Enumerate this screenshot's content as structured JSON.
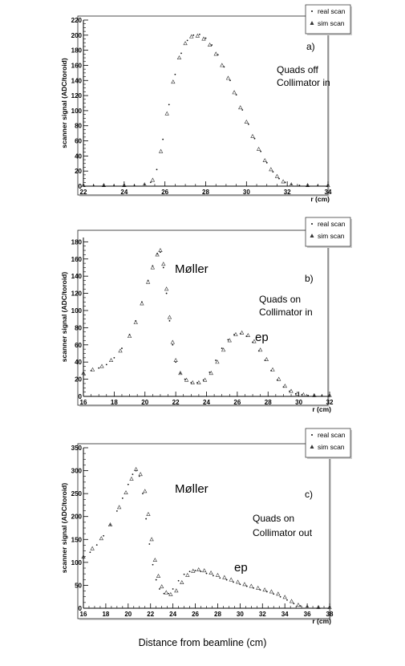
{
  "chart_data": [
    {
      "type": "scatter",
      "panel_label": "a)",
      "notes": [
        "Quads off",
        "Collimator in"
      ],
      "peak_labels": [],
      "ylabel": "scanner signal (ADC/toroid)",
      "xunit": "r (cm)",
      "xlim": [
        22,
        34
      ],
      "ylim": [
        0,
        220
      ],
      "xticks": [
        22,
        24,
        26,
        28,
        30,
        32,
        34
      ],
      "yticks": [
        0,
        20,
        40,
        60,
        80,
        100,
        120,
        140,
        160,
        180,
        200,
        220
      ],
      "legend": {
        "position": "top-right",
        "entries": [
          "real scan",
          "sim scan"
        ]
      },
      "series": [
        {
          "name": "real scan",
          "marker": "dot",
          "x": [
            22,
            22.5,
            23,
            23.5,
            24,
            24.5,
            25,
            25.3,
            25.6,
            25.9,
            26.2,
            26.5,
            26.8,
            27.1,
            27.4,
            27.7,
            28.0,
            28.3,
            28.6,
            28.9,
            29.2,
            29.5,
            29.8,
            30.1,
            30.4,
            30.7,
            31.0,
            31.3,
            31.6,
            31.9,
            32.2,
            32.6,
            33,
            33.5,
            34
          ],
          "y": [
            1,
            1,
            1,
            1,
            1,
            1,
            2,
            5,
            22,
            62,
            108,
            148,
            176,
            193,
            200,
            201,
            196,
            187,
            174,
            158,
            140,
            121,
            101,
            82,
            63,
            46,
            31,
            19,
            10,
            5,
            2,
            1,
            1,
            1,
            1
          ]
        },
        {
          "name": "sim scan",
          "marker": "triangle",
          "x": [
            22,
            23,
            24,
            25,
            25.4,
            25.8,
            26.1,
            26.4,
            26.7,
            27.0,
            27.3,
            27.6,
            27.9,
            28.2,
            28.5,
            28.8,
            29.1,
            29.4,
            29.7,
            30.0,
            30.3,
            30.6,
            30.9,
            31.2,
            31.5,
            31.8,
            32.2,
            33,
            34
          ],
          "y": [
            1,
            1,
            1,
            2,
            8,
            46,
            96,
            138,
            170,
            189,
            198,
            199,
            195,
            187,
            175,
            160,
            143,
            124,
            104,
            85,
            66,
            49,
            34,
            22,
            13,
            6,
            2,
            1,
            1
          ]
        }
      ]
    },
    {
      "type": "scatter",
      "panel_label": "b)",
      "notes": [
        "Quads on",
        "Collimator in"
      ],
      "peak_labels": [
        "Møller",
        "ep"
      ],
      "ylabel": "scanner signal (ADC/toroid)",
      "xunit": "r (cm)",
      "xlim": [
        16,
        32
      ],
      "ylim": [
        0,
        185
      ],
      "xticks": [
        16,
        18,
        20,
        22,
        24,
        26,
        28,
        30,
        32
      ],
      "yticks": [
        0,
        20,
        40,
        60,
        80,
        100,
        120,
        140,
        160,
        180
      ],
      "legend": {
        "position": "top-right",
        "entries": [
          "real scan",
          "sim scan"
        ]
      },
      "series": [
        {
          "name": "real scan",
          "marker": "dot",
          "x": [
            16,
            16.5,
            17,
            17.5,
            18,
            18.5,
            19,
            19.4,
            19.8,
            20.2,
            20.5,
            20.8,
            21.0,
            21.2,
            21.4,
            21.6,
            21.8,
            22.0,
            22.3,
            22.6,
            23.0,
            23.4,
            23.8,
            24.2,
            24.6,
            25.0,
            25.4,
            25.8,
            26.2,
            26.6,
            27.0,
            27.4,
            27.8,
            28.2,
            28.6,
            29.0,
            29.4,
            29.8,
            30.2,
            30.6,
            31,
            31.5,
            32
          ],
          "y": [
            27,
            30,
            33,
            37,
            45,
            56,
            72,
            88,
            110,
            135,
            152,
            166,
            168,
            150,
            120,
            88,
            60,
            40,
            27,
            20,
            16,
            16,
            19,
            28,
            42,
            56,
            66,
            72,
            73,
            70,
            63,
            53,
            42,
            30,
            19,
            11,
            6,
            3,
            2,
            1,
            1,
            1,
            1
          ]
        },
        {
          "name": "sim scan",
          "marker": "triangle",
          "x": [
            16,
            16.6,
            17.2,
            17.8,
            18.4,
            19.0,
            19.4,
            19.8,
            20.2,
            20.5,
            20.8,
            21.0,
            21.2,
            21.4,
            21.6,
            21.8,
            22.0,
            22.3,
            22.7,
            23.1,
            23.5,
            23.9,
            24.3,
            24.7,
            25.1,
            25.5,
            25.9,
            26.3,
            26.7,
            27.1,
            27.5,
            27.9,
            28.3,
            28.7,
            29.1,
            29.5,
            29.9,
            30.3,
            31,
            32
          ],
          "y": [
            27,
            31,
            35,
            42,
            53,
            70,
            86,
            108,
            133,
            150,
            165,
            170,
            154,
            125,
            92,
            63,
            42,
            27,
            19,
            16,
            16,
            19,
            27,
            40,
            54,
            65,
            72,
            74,
            71,
            64,
            54,
            43,
            31,
            20,
            12,
            6,
            3,
            2,
            1,
            1
          ]
        }
      ]
    },
    {
      "type": "scatter",
      "panel_label": "c)",
      "notes": [
        "Quads on",
        "Collimator out"
      ],
      "peak_labels": [
        "Møller",
        "ep"
      ],
      "ylabel": "scanner signal (ADC/toroid)",
      "xunit": "r (cm)",
      "xlim": [
        16,
        38
      ],
      "ylim": [
        0,
        350
      ],
      "xticks": [
        16,
        18,
        20,
        22,
        24,
        26,
        28,
        30,
        32,
        34,
        36,
        38
      ],
      "yticks": [
        0,
        50,
        100,
        150,
        200,
        250,
        300,
        350
      ],
      "legend": {
        "position": "top-right",
        "entries": [
          "real scan",
          "sim scan"
        ]
      },
      "series": [
        {
          "name": "real scan",
          "marker": "dot",
          "x": [
            16,
            16.6,
            17.2,
            17.8,
            18.4,
            19.0,
            19.5,
            20.0,
            20.4,
            20.7,
            21.0,
            21.3,
            21.6,
            21.9,
            22.2,
            22.5,
            22.8,
            23.2,
            23.6,
            24.0,
            24.5,
            25.0,
            25.5,
            26.0,
            26.5,
            27.0,
            27.6,
            28.2,
            28.8,
            29.4,
            30.0,
            30.6,
            31.2,
            31.8,
            32.4,
            33.0,
            33.6,
            34.2,
            34.8,
            35.4,
            36.0,
            37,
            38
          ],
          "y": [
            110,
            122,
            138,
            158,
            182,
            212,
            240,
            270,
            292,
            300,
            288,
            250,
            195,
            140,
            95,
            62,
            42,
            32,
            32,
            42,
            60,
            74,
            80,
            82,
            80,
            76,
            71,
            66,
            62,
            57,
            52,
            48,
            44,
            40,
            36,
            31,
            25,
            18,
            10,
            5,
            3,
            2,
            2
          ]
        },
        {
          "name": "sim scan",
          "marker": "triangle",
          "x": [
            16,
            16.8,
            17.6,
            18.4,
            19.2,
            19.8,
            20.3,
            20.7,
            21.1,
            21.5,
            21.8,
            22.1,
            22.4,
            22.7,
            23.0,
            23.4,
            23.8,
            24.3,
            24.8,
            25.3,
            25.8,
            26.3,
            26.8,
            27.4,
            28.0,
            28.6,
            29.2,
            29.8,
            30.4,
            31.0,
            31.6,
            32.2,
            32.8,
            33.4,
            34.0,
            34.6,
            35.2,
            36,
            37,
            38
          ],
          "y": [
            112,
            130,
            152,
            182,
            220,
            252,
            282,
            303,
            292,
            255,
            205,
            150,
            105,
            70,
            47,
            34,
            30,
            38,
            56,
            72,
            81,
            84,
            82,
            77,
            72,
            67,
            62,
            57,
            52,
            48,
            44,
            40,
            36,
            31,
            24,
            15,
            7,
            3,
            2,
            2
          ]
        }
      ]
    }
  ],
  "footer": {
    "caption": "Distance from beamline (cm)"
  }
}
